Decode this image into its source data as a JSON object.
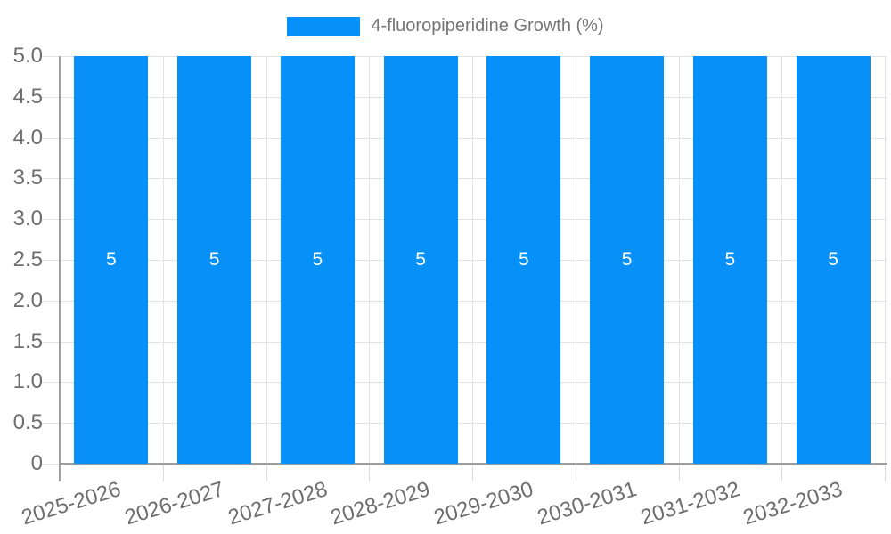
{
  "legend": {
    "label": "4-fluoropiperidine Growth (%)"
  },
  "chart_data": {
    "type": "bar",
    "title": "4-fluoropiperidine Growth (%)",
    "series_name": "4-fluoropiperidine Growth (%)",
    "categories": [
      "2025-2026",
      "2026-2027",
      "2027-2028",
      "2028-2029",
      "2029-2030",
      "2030-2031",
      "2031-2032",
      "2032-2033"
    ],
    "values": [
      5,
      5,
      5,
      5,
      5,
      5,
      5,
      5
    ],
    "bar_value_labels": [
      "5",
      "5",
      "5",
      "5",
      "5",
      "5",
      "5",
      "5"
    ],
    "xlabel": "",
    "ylabel": "",
    "ylim": [
      0,
      5
    ],
    "ytick_step": 0.5,
    "ytick_labels": [
      "5.0",
      "4.5",
      "4.0",
      "3.5",
      "3.0",
      "2.5",
      "2.0",
      "1.5",
      "1.0",
      "0.5",
      "0"
    ],
    "grid": true,
    "legend_position": "top",
    "colors": {
      "bar": "#0690f8",
      "grid": "#e3e3e3",
      "tick": "#dcdcdc",
      "axis": "#9e9e9e",
      "axis_text": "#6e6e6e",
      "legend_text": "#757575",
      "value_label_text": "#ffffff",
      "background": "#ffffff"
    }
  }
}
